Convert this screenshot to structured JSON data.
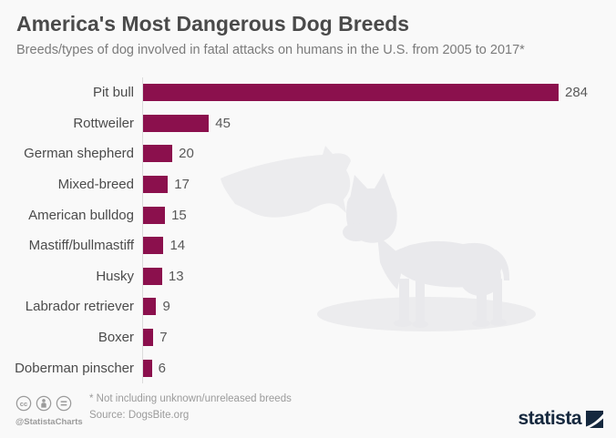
{
  "header": {
    "title": "America's Most Dangerous Dog Breeds",
    "subtitle": "Breeds/types of dog involved in fatal attacks on humans in the U.S. from 2005 to 2017*"
  },
  "chart_data": {
    "type": "bar",
    "orientation": "horizontal",
    "title": "America's Most Dangerous Dog Breeds",
    "xlabel": "",
    "ylabel": "",
    "categories": [
      "Pit bull",
      "Rottweiler",
      "German shepherd",
      "Mixed-breed",
      "American bulldog",
      "Mastiff/bullmastiff",
      "Husky",
      "Labrador retriever",
      "Boxer",
      "Doberman pinscher"
    ],
    "values": [
      284,
      45,
      20,
      17,
      15,
      14,
      13,
      9,
      7,
      6
    ],
    "xlim": [
      0,
      284
    ],
    "grid": false,
    "value_labels_shown": true,
    "bar_color": "#8b104d"
  },
  "watermark": {
    "icons": [
      "us-map-silhouette",
      "pit-bull-silhouette"
    ]
  },
  "footer": {
    "license_icons": [
      "cc-icon",
      "attribution-icon",
      "no-derivatives-icon"
    ],
    "handle": "@StatistaCharts",
    "note": "* Not including unknown/unreleased breeds",
    "source": "Source: DogsBite.org",
    "brand": "statista"
  },
  "colors": {
    "background": "#f9f9f9",
    "bar": "#8b104d",
    "brand_navy": "#15283e",
    "title_text": "#4a4a4a",
    "muted_text": "#9b9b9b",
    "watermark_gray": "#e9e9ec"
  }
}
